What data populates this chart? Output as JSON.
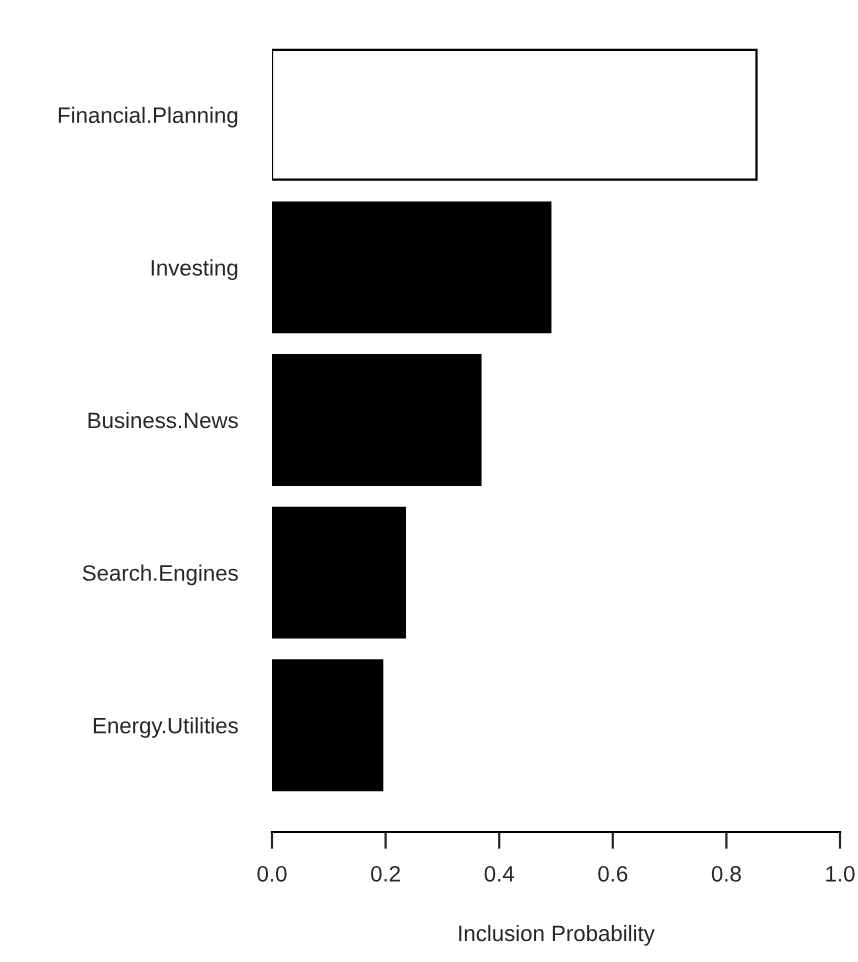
{
  "chart_data": {
    "type": "bar",
    "orientation": "horizontal",
    "xlabel": "Inclusion Probability",
    "categories": [
      "Financial.Planning",
      "Investing",
      "Business.News",
      "Search.Engines",
      "Energy.Utilities"
    ],
    "values": [
      0.853,
      0.49,
      0.367,
      0.234,
      0.194
    ],
    "colors": [
      "#ffffff",
      "#000000",
      "#000000",
      "#000000",
      "#000000"
    ],
    "xlim": [
      0,
      1
    ],
    "xticks": [
      {
        "value": 0,
        "label": "0.0"
      },
      0.2,
      0.4,
      0.6,
      0.8,
      {
        "value": 1,
        "label": "1.0"
      }
    ],
    "grid": false,
    "legend": false
  }
}
